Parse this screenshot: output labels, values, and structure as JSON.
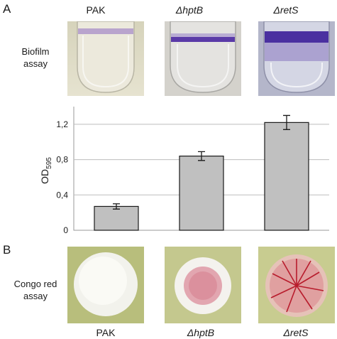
{
  "panel_a": {
    "letter": "A",
    "strains": [
      "PAK",
      "ΔhptB",
      "ΔretS"
    ],
    "row_label_line1": "Biofilm",
    "row_label_line2": "assay"
  },
  "panel_b": {
    "letter": "B",
    "strains": [
      "PAK",
      "ΔhptB",
      "ΔretS"
    ],
    "row_label_line1": "Congo red",
    "row_label_line2": "assay"
  },
  "chart_data": {
    "type": "bar",
    "categories": [
      "PAK",
      "ΔhptB",
      "ΔretS"
    ],
    "values": [
      0.27,
      0.84,
      1.22
    ],
    "errors": [
      0.03,
      0.05,
      0.08
    ],
    "ylabel_main": "OD",
    "ylabel_sub": "595",
    "ylim": [
      0,
      1.4
    ],
    "yticks": [
      0,
      0.4,
      0.8,
      1.2
    ],
    "ytick_labels": [
      "0",
      "0,4",
      "0,8",
      "1,2"
    ],
    "grid": true,
    "bar_color": "#c0c0c0"
  }
}
